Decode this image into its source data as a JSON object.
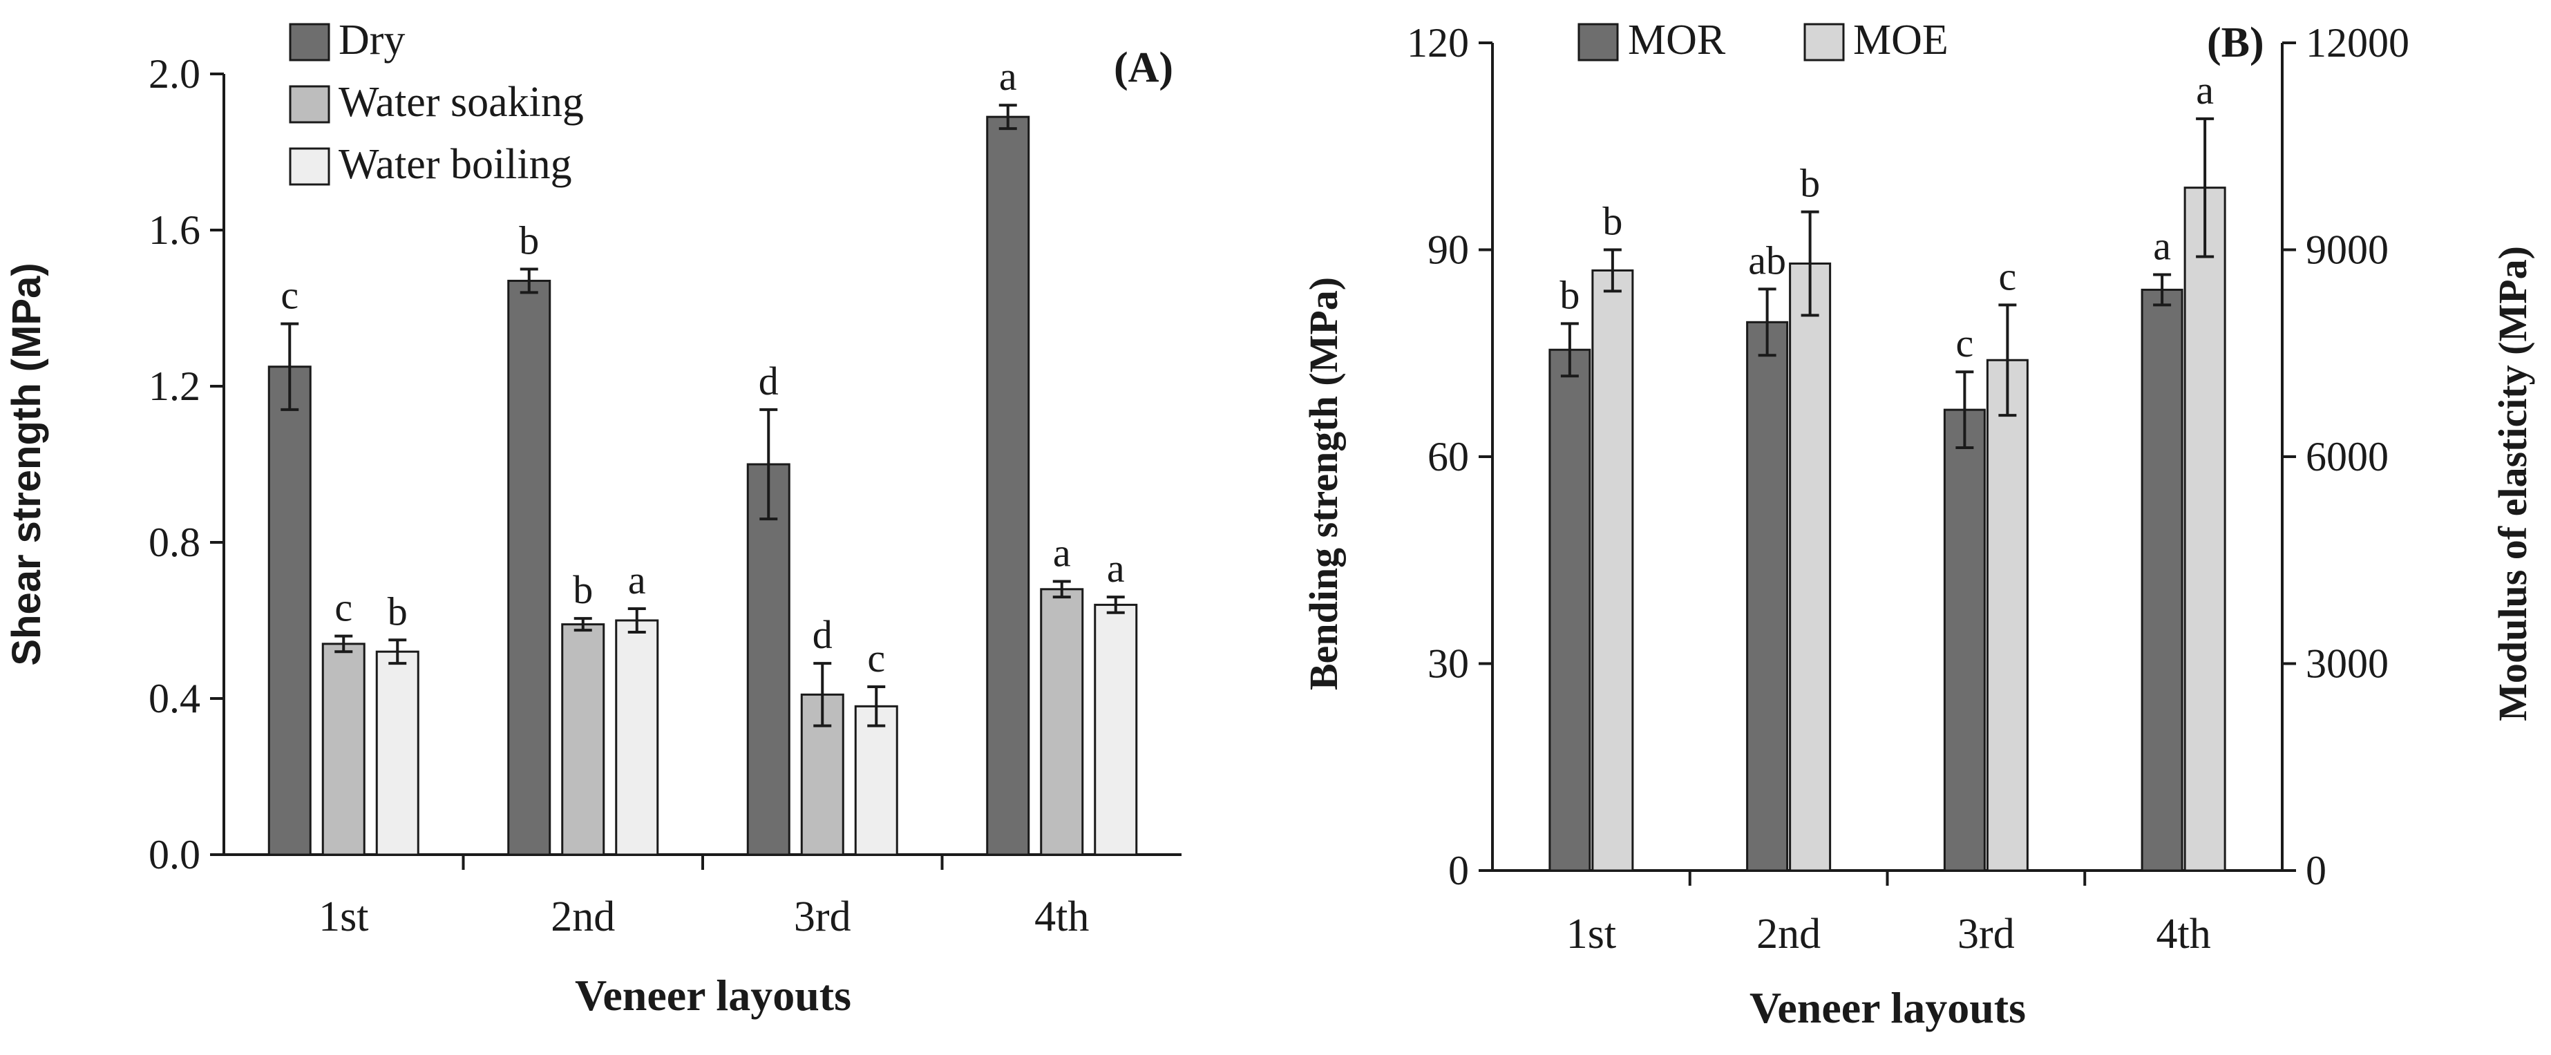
{
  "chart_data": [
    {
      "panel": "A",
      "type": "bar",
      "panel_label": "(A)",
      "xlabel": "Veneer layouts",
      "ylabel": "Shear strength (MPa)",
      "categories": [
        "1st",
        "2nd",
        "3rd",
        "4th"
      ],
      "ylim": [
        0,
        2.0
      ],
      "yticks": [
        "0.0",
        "0.4",
        "0.8",
        "1.2",
        "1.6",
        "2.0"
      ],
      "legend_position": "top-left",
      "series": [
        {
          "name": "Dry",
          "color": "#6e6e6e",
          "values": [
            1.25,
            1.47,
            1.0,
            1.89
          ],
          "errors": [
            0.11,
            0.03,
            0.14,
            0.03
          ],
          "letters": [
            "c",
            "b",
            "d",
            "a"
          ]
        },
        {
          "name": "Water soaking",
          "color": "#bdbdbd",
          "values": [
            0.54,
            0.59,
            0.41,
            0.68
          ],
          "errors": [
            0.02,
            0.015,
            0.08,
            0.02
          ],
          "letters": [
            "c",
            "b",
            "d",
            "a"
          ]
        },
        {
          "name": "Water boiling",
          "color": "#eeeeee",
          "values": [
            0.52,
            0.6,
            0.38,
            0.64
          ],
          "errors": [
            0.03,
            0.03,
            0.05,
            0.02
          ],
          "letters": [
            "b",
            "a",
            "c",
            "a"
          ]
        }
      ]
    },
    {
      "panel": "B",
      "type": "bar",
      "panel_label": "(B)",
      "xlabel": "Veneer layouts",
      "ylabel": "Bending strength (MPa)",
      "ylabel_right": "Modulus of elasticity (MPa)",
      "categories": [
        "1st",
        "2nd",
        "3rd",
        "4th"
      ],
      "ylim": [
        0,
        120
      ],
      "ylim_right": [
        0,
        12000
      ],
      "yticks": [
        "0",
        "30",
        "60",
        "90",
        "120"
      ],
      "yticks_right": [
        "0",
        "3000",
        "6000",
        "9000",
        "12000"
      ],
      "legend_position": "top-left",
      "series": [
        {
          "name": "MOR",
          "axis": "left",
          "color": "#6e6e6e",
          "values": [
            75.5,
            79.5,
            66.8,
            84.2
          ],
          "errors": [
            3.8,
            4.8,
            5.5,
            2.2
          ],
          "letters": [
            "b",
            "ab",
            "c",
            "a"
          ]
        },
        {
          "name": "MOE",
          "axis": "right",
          "color": "#d6d6d6",
          "values": [
            8700,
            8800,
            7400,
            9900
          ],
          "errors": [
            300,
            750,
            800,
            1000
          ],
          "letters": [
            "b",
            "b",
            "c",
            "a"
          ]
        }
      ]
    }
  ]
}
